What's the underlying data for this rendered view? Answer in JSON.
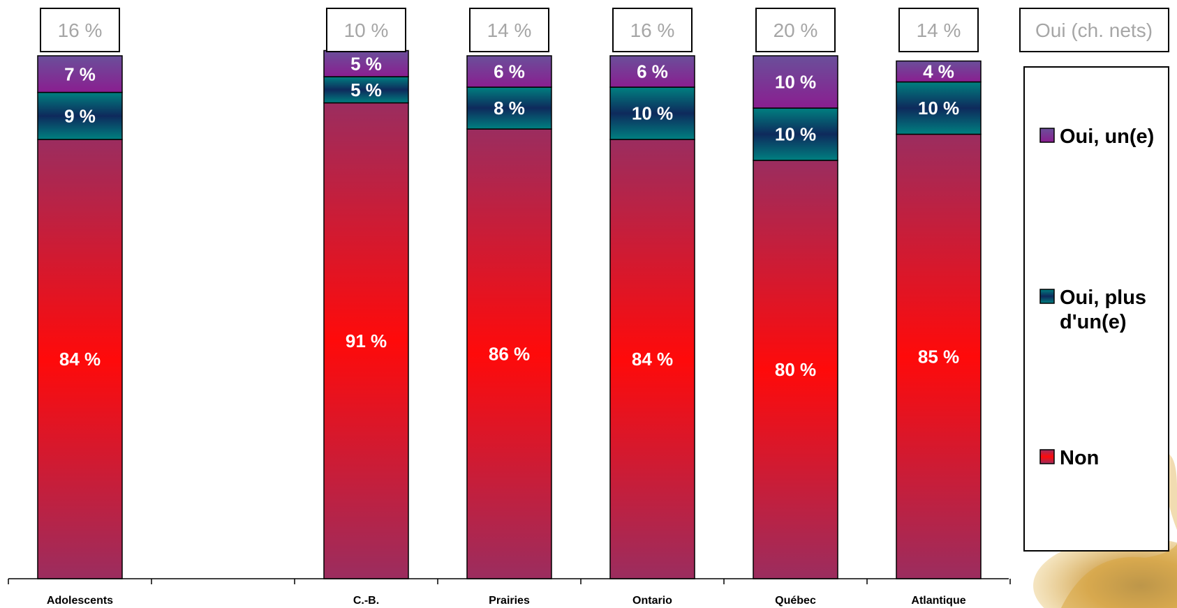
{
  "chart_data": {
    "type": "bar",
    "stacked": true,
    "categories": [
      "Adolescents",
      "",
      "C.-B.",
      "Prairies",
      "Ontario",
      "Québec",
      "Atlantique"
    ],
    "series": [
      {
        "name": "Non",
        "values": [
          84,
          null,
          91,
          86,
          84,
          80,
          85
        ],
        "labels": [
          "84 %",
          "",
          "91 %",
          "86 %",
          "84 %",
          "80 %",
          "85 %"
        ]
      },
      {
        "name": "Oui, plus d'un(e)",
        "values": [
          9,
          null,
          5,
          8,
          10,
          10,
          10
        ],
        "labels": [
          "9 %",
          "",
          "5 %",
          "8 %",
          "10 %",
          "10 %",
          "10 %"
        ]
      },
      {
        "name": "Oui, un(e)",
        "values": [
          7,
          null,
          5,
          6,
          6,
          10,
          4
        ],
        "labels": [
          "7 %",
          "",
          "5 %",
          "6 %",
          "6 %",
          "10 %",
          "4 %"
        ]
      }
    ],
    "net_header": "Oui (ch. nets)",
    "net_values": [
      "16 %",
      "",
      "10 %",
      "14 %",
      "16 %",
      "20 %",
      "14 %"
    ],
    "legend": [
      "Oui, un(e)",
      "Oui, plus d'un(e)",
      "Non"
    ],
    "legend_position": "right",
    "ylim": [
      0,
      100
    ],
    "grid": false,
    "colors": {
      "Non": [
        "#9b2d5f",
        "#ff0a0a"
      ],
      "Oui, plus d'un(e)": [
        "#0e2a5c",
        "#008080"
      ],
      "Oui, un(e)": [
        "#6a4f9a",
        "#8a1e90"
      ]
    }
  }
}
